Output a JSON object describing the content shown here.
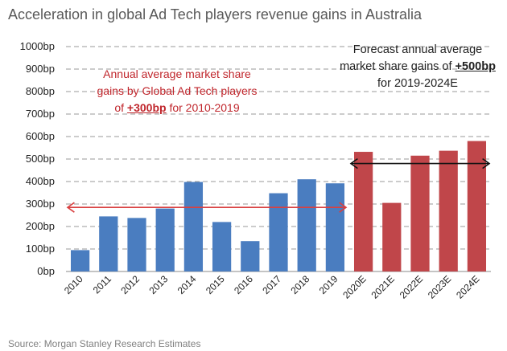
{
  "title": "Acceleration in global Ad Tech players revenue gains in Australia",
  "source": "Source: Morgan Stanley Research Estimates",
  "annotations": {
    "historical": {
      "before": "Annual average market share gains by Global Ad Tech players of",
      "value": "+300bp",
      "after": "for 2010-2019"
    },
    "forecast": {
      "before": "Forecast annual average market share gains of",
      "value": "+500bp",
      "after": "for 2019-2024E"
    }
  },
  "colors": {
    "actual": "#4a7dc0",
    "forecast": "#c0464a",
    "arrow_red": "#d94040",
    "arrow_black": "#111111"
  },
  "chart_data": {
    "type": "bar",
    "categories": [
      "2010",
      "2011",
      "2012",
      "2013",
      "2014",
      "2015",
      "2016",
      "2017",
      "2018",
      "2019",
      "2020E",
      "2021E",
      "2022E",
      "2023E",
      "2024E"
    ],
    "values": [
      95,
      245,
      238,
      280,
      398,
      220,
      135,
      348,
      410,
      392,
      532,
      305,
      515,
      537,
      580
    ],
    "yticks": [
      "0bp",
      "100bp",
      "200bp",
      "300bp",
      "400bp",
      "500bp",
      "600bp",
      "700bp",
      "800bp",
      "900bp",
      "1000bp"
    ],
    "ylim": [
      0,
      1000
    ],
    "grid": "dashed horizontal",
    "forecast_from": "2020E",
    "arrows": [
      {
        "from": "2010",
        "to": "2019",
        "y": 285
      },
      {
        "from": "2020E",
        "to": "2024E",
        "y": 480
      }
    ]
  }
}
